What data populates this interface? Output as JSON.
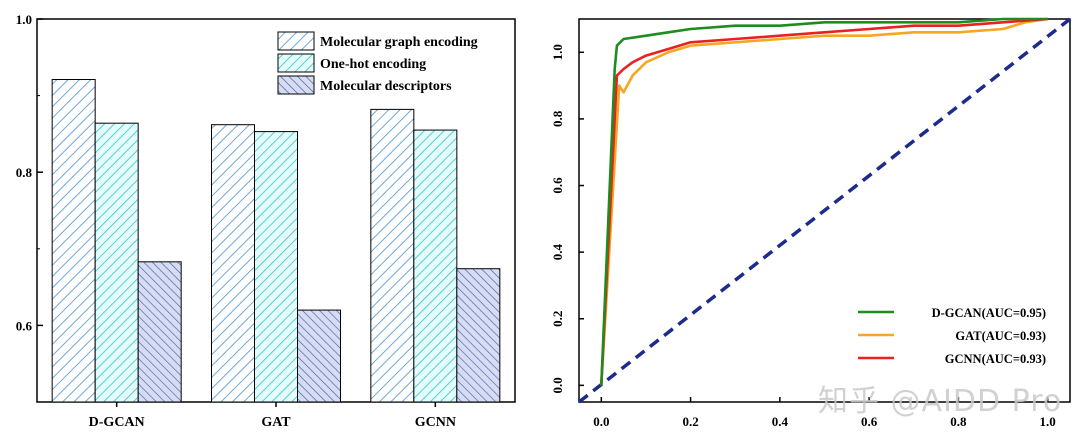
{
  "chart_data": [
    {
      "type": "bar",
      "categories": [
        "D-GCAN",
        "GAT",
        "GCNN"
      ],
      "series": [
        {
          "name": "Molecular graph encoding",
          "values": [
            0.921,
            0.862,
            0.882
          ],
          "color": "#6fa8dc",
          "fill": "#ffffff"
        },
        {
          "name": "One-hot encoding",
          "values": [
            0.864,
            0.853,
            0.855
          ],
          "color": "#38c4c0",
          "fill": "#e4fcfc"
        },
        {
          "name": "Molecular descriptors",
          "values": [
            0.683,
            0.62,
            0.674
          ],
          "color": "#4b5ea6",
          "fill": "#d6dcf2"
        }
      ],
      "ylim": [
        0.5,
        1.0
      ],
      "yticks": [
        "0.6",
        "0.8",
        "1.0"
      ],
      "legend": "top-right"
    },
    {
      "type": "line",
      "xlim": [
        -0.05,
        1.05
      ],
      "ylim": [
        -0.05,
        1.1
      ],
      "xticks": [
        "0.0",
        "0.2",
        "0.4",
        "0.6",
        "0.8",
        "1.0"
      ],
      "yticks": [
        "0.0",
        "0.2",
        "0.4",
        "0.6",
        "0.8",
        "1.0"
      ],
      "legend": "bottom-right",
      "series": [
        {
          "name": "D-GCAN(AUC=0.95)",
          "color": "#1f8c1f",
          "x": [
            0,
            0.03,
            0.035,
            0.05,
            0.1,
            0.15,
            0.2,
            0.3,
            0.4,
            0.5,
            0.6,
            0.7,
            0.8,
            0.9,
            1.0
          ],
          "y": [
            0,
            0.95,
            1.02,
            1.04,
            1.05,
            1.06,
            1.07,
            1.08,
            1.08,
            1.09,
            1.09,
            1.09,
            1.09,
            1.1,
            1.1
          ]
        },
        {
          "name": "GAT(AUC=0.93)",
          "color": "#f5a623",
          "x": [
            0,
            0.04,
            0.05,
            0.07,
            0.1,
            0.15,
            0.2,
            0.3,
            0.4,
            0.5,
            0.6,
            0.7,
            0.8,
            0.9,
            0.95,
            1.0
          ],
          "y": [
            0,
            0.9,
            0.88,
            0.93,
            0.97,
            1.0,
            1.02,
            1.03,
            1.04,
            1.05,
            1.05,
            1.06,
            1.06,
            1.07,
            1.09,
            1.1
          ]
        },
        {
          "name": "GCNN(AUC=0.93)",
          "color": "#e8231f",
          "x": [
            0,
            0.035,
            0.05,
            0.07,
            0.1,
            0.15,
            0.2,
            0.3,
            0.4,
            0.5,
            0.6,
            0.7,
            0.8,
            0.9,
            1.0
          ],
          "y": [
            0,
            0.93,
            0.95,
            0.97,
            0.99,
            1.01,
            1.03,
            1.04,
            1.05,
            1.06,
            1.07,
            1.08,
            1.08,
            1.09,
            1.1
          ]
        },
        {
          "name": "baseline",
          "color": "#1c2c8c",
          "dashed": true,
          "x": [
            -0.05,
            1.05
          ],
          "y": [
            -0.05,
            1.1
          ]
        }
      ]
    }
  ],
  "watermark": "知乎 @AIDD Pro"
}
